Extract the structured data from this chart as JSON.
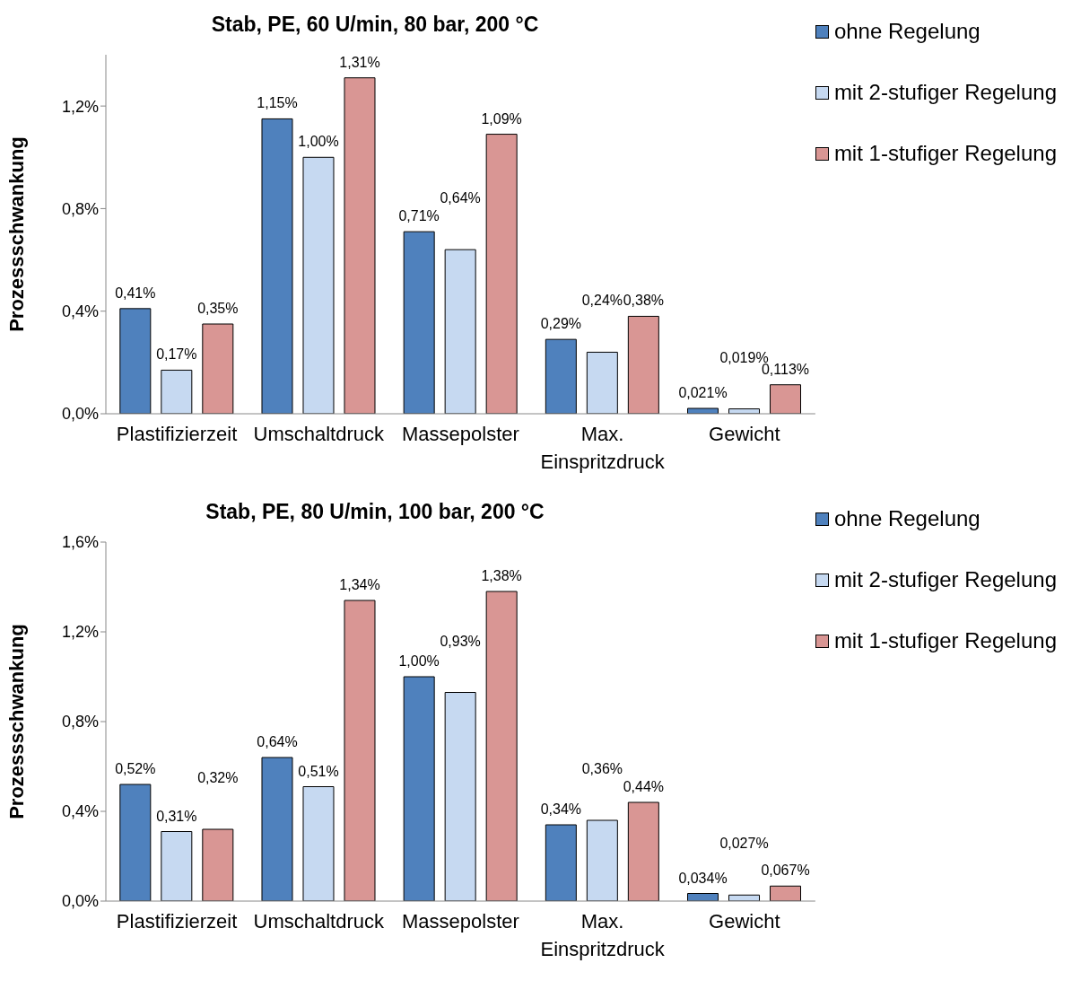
{
  "chart_data": [
    {
      "type": "bar",
      "title": "Stab, PE, 60 U/min, 80 bar, 200 °C",
      "ylabel": "Prozessschwankung",
      "categories": [
        "Plastifizierzeit",
        "Umschaltdruck",
        "Massepolster",
        "Max. Einspritzdruck",
        "Gewicht"
      ],
      "series": [
        {
          "name": "ohne Regelung",
          "color": "#4f81bd",
          "values": [
            0.41,
            1.15,
            0.71,
            0.29,
            0.021
          ],
          "value_labels": [
            "0,41%",
            "1,15%",
            "0,71%",
            "0,29%",
            "0,021%"
          ]
        },
        {
          "name": "mit 2-stufiger Regelung",
          "color": "#c6d9f1",
          "values": [
            0.17,
            1.0,
            0.64,
            0.24,
            0.019
          ],
          "value_labels": [
            "0,17%",
            "1,00%",
            "0,64%",
            "0,24%",
            "0,019%"
          ]
        },
        {
          "name": "mit 1-stufiger Regelung",
          "color": "#d99694",
          "values": [
            0.35,
            1.31,
            1.09,
            0.38,
            0.113
          ],
          "value_labels": [
            "0,35%",
            "1,31%",
            "1,09%",
            "0,38%",
            "0,113%"
          ]
        }
      ],
      "ylim": [
        0,
        1.4
      ],
      "yticks": [
        {
          "value": 0,
          "label": "0,0%"
        },
        {
          "value": 0.4,
          "label": "0,4%"
        },
        {
          "value": 0.8,
          "label": "0,8%"
        },
        {
          "value": 1.2,
          "label": "1,2%"
        }
      ],
      "legend": "top right"
    },
    {
      "type": "bar",
      "title": "Stab, PE, 80 U/min, 100 bar, 200 °C",
      "ylabel": "Prozessschwankung",
      "categories": [
        "Plastifizierzeit",
        "Umschaltdruck",
        "Massepolster",
        "Max. Einspritzdruck",
        "Gewicht"
      ],
      "series": [
        {
          "name": "ohne Regelung",
          "color": "#4f81bd",
          "values": [
            0.52,
            0.64,
            1.0,
            0.34,
            0.034
          ],
          "value_labels": [
            "0,52%",
            "0,64%",
            "1,00%",
            "0,34%",
            "0,034%"
          ]
        },
        {
          "name": "mit 2-stufiger Regelung",
          "color": "#c6d9f1",
          "values": [
            0.31,
            0.51,
            0.93,
            0.36,
            0.027
          ],
          "value_labels": [
            "0,31%",
            "0,51%",
            "0,93%",
            "0,36%",
            "0,027%"
          ]
        },
        {
          "name": "mit 1-stufiger Regelung",
          "color": "#d99694",
          "values": [
            0.32,
            1.34,
            1.38,
            0.44,
            0.067
          ],
          "value_labels": [
            "0,32%",
            "1,34%",
            "1,38%",
            "0,44%",
            "0,067%"
          ]
        }
      ],
      "ylim": [
        0,
        1.6
      ],
      "yticks": [
        {
          "value": 0,
          "label": "0,0%"
        },
        {
          "value": 0.4,
          "label": "0,4%"
        },
        {
          "value": 0.8,
          "label": "0,8%"
        },
        {
          "value": 1.2,
          "label": "1,2%"
        },
        {
          "value": 1.6,
          "label": "1,6%"
        }
      ],
      "legend": "top right"
    }
  ]
}
